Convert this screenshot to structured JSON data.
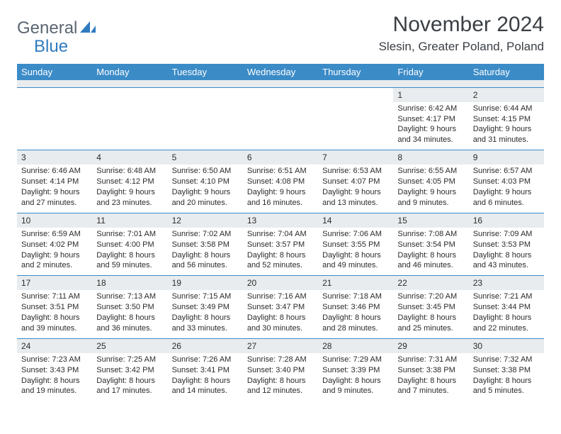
{
  "logo": {
    "textGray": "General",
    "textBlue": "Blue"
  },
  "title": "November 2024",
  "subtitle": "Slesin, Greater Poland, Poland",
  "colors": {
    "headerBg": "#3b8bc7",
    "headerText": "#ffffff",
    "dayNumBg": "#e9ecee",
    "border": "#3b8bc7",
    "bodyText": "#2b2b2b",
    "logoGray": "#5b6670",
    "logoBlue": "#2f7bbf",
    "pageBg": "#ffffff"
  },
  "typography": {
    "titleSize": 30,
    "subtitleSize": 17,
    "headerSize": 13,
    "cellSize": 11,
    "dayNumSize": 12
  },
  "dayHeaders": [
    "Sunday",
    "Monday",
    "Tuesday",
    "Wednesday",
    "Thursday",
    "Friday",
    "Saturday"
  ],
  "weeks": [
    [
      {
        "num": "",
        "sunrise": "",
        "sunset": "",
        "daylight1": "",
        "daylight2": ""
      },
      {
        "num": "",
        "sunrise": "",
        "sunset": "",
        "daylight1": "",
        "daylight2": ""
      },
      {
        "num": "",
        "sunrise": "",
        "sunset": "",
        "daylight1": "",
        "daylight2": ""
      },
      {
        "num": "",
        "sunrise": "",
        "sunset": "",
        "daylight1": "",
        "daylight2": ""
      },
      {
        "num": "",
        "sunrise": "",
        "sunset": "",
        "daylight1": "",
        "daylight2": ""
      },
      {
        "num": "1",
        "sunrise": "Sunrise: 6:42 AM",
        "sunset": "Sunset: 4:17 PM",
        "daylight1": "Daylight: 9 hours",
        "daylight2": "and 34 minutes."
      },
      {
        "num": "2",
        "sunrise": "Sunrise: 6:44 AM",
        "sunset": "Sunset: 4:15 PM",
        "daylight1": "Daylight: 9 hours",
        "daylight2": "and 31 minutes."
      }
    ],
    [
      {
        "num": "3",
        "sunrise": "Sunrise: 6:46 AM",
        "sunset": "Sunset: 4:14 PM",
        "daylight1": "Daylight: 9 hours",
        "daylight2": "and 27 minutes."
      },
      {
        "num": "4",
        "sunrise": "Sunrise: 6:48 AM",
        "sunset": "Sunset: 4:12 PM",
        "daylight1": "Daylight: 9 hours",
        "daylight2": "and 23 minutes."
      },
      {
        "num": "5",
        "sunrise": "Sunrise: 6:50 AM",
        "sunset": "Sunset: 4:10 PM",
        "daylight1": "Daylight: 9 hours",
        "daylight2": "and 20 minutes."
      },
      {
        "num": "6",
        "sunrise": "Sunrise: 6:51 AM",
        "sunset": "Sunset: 4:08 PM",
        "daylight1": "Daylight: 9 hours",
        "daylight2": "and 16 minutes."
      },
      {
        "num": "7",
        "sunrise": "Sunrise: 6:53 AM",
        "sunset": "Sunset: 4:07 PM",
        "daylight1": "Daylight: 9 hours",
        "daylight2": "and 13 minutes."
      },
      {
        "num": "8",
        "sunrise": "Sunrise: 6:55 AM",
        "sunset": "Sunset: 4:05 PM",
        "daylight1": "Daylight: 9 hours",
        "daylight2": "and 9 minutes."
      },
      {
        "num": "9",
        "sunrise": "Sunrise: 6:57 AM",
        "sunset": "Sunset: 4:03 PM",
        "daylight1": "Daylight: 9 hours",
        "daylight2": "and 6 minutes."
      }
    ],
    [
      {
        "num": "10",
        "sunrise": "Sunrise: 6:59 AM",
        "sunset": "Sunset: 4:02 PM",
        "daylight1": "Daylight: 9 hours",
        "daylight2": "and 2 minutes."
      },
      {
        "num": "11",
        "sunrise": "Sunrise: 7:01 AM",
        "sunset": "Sunset: 4:00 PM",
        "daylight1": "Daylight: 8 hours",
        "daylight2": "and 59 minutes."
      },
      {
        "num": "12",
        "sunrise": "Sunrise: 7:02 AM",
        "sunset": "Sunset: 3:58 PM",
        "daylight1": "Daylight: 8 hours",
        "daylight2": "and 56 minutes."
      },
      {
        "num": "13",
        "sunrise": "Sunrise: 7:04 AM",
        "sunset": "Sunset: 3:57 PM",
        "daylight1": "Daylight: 8 hours",
        "daylight2": "and 52 minutes."
      },
      {
        "num": "14",
        "sunrise": "Sunrise: 7:06 AM",
        "sunset": "Sunset: 3:55 PM",
        "daylight1": "Daylight: 8 hours",
        "daylight2": "and 49 minutes."
      },
      {
        "num": "15",
        "sunrise": "Sunrise: 7:08 AM",
        "sunset": "Sunset: 3:54 PM",
        "daylight1": "Daylight: 8 hours",
        "daylight2": "and 46 minutes."
      },
      {
        "num": "16",
        "sunrise": "Sunrise: 7:09 AM",
        "sunset": "Sunset: 3:53 PM",
        "daylight1": "Daylight: 8 hours",
        "daylight2": "and 43 minutes."
      }
    ],
    [
      {
        "num": "17",
        "sunrise": "Sunrise: 7:11 AM",
        "sunset": "Sunset: 3:51 PM",
        "daylight1": "Daylight: 8 hours",
        "daylight2": "and 39 minutes."
      },
      {
        "num": "18",
        "sunrise": "Sunrise: 7:13 AM",
        "sunset": "Sunset: 3:50 PM",
        "daylight1": "Daylight: 8 hours",
        "daylight2": "and 36 minutes."
      },
      {
        "num": "19",
        "sunrise": "Sunrise: 7:15 AM",
        "sunset": "Sunset: 3:49 PM",
        "daylight1": "Daylight: 8 hours",
        "daylight2": "and 33 minutes."
      },
      {
        "num": "20",
        "sunrise": "Sunrise: 7:16 AM",
        "sunset": "Sunset: 3:47 PM",
        "daylight1": "Daylight: 8 hours",
        "daylight2": "and 30 minutes."
      },
      {
        "num": "21",
        "sunrise": "Sunrise: 7:18 AM",
        "sunset": "Sunset: 3:46 PM",
        "daylight1": "Daylight: 8 hours",
        "daylight2": "and 28 minutes."
      },
      {
        "num": "22",
        "sunrise": "Sunrise: 7:20 AM",
        "sunset": "Sunset: 3:45 PM",
        "daylight1": "Daylight: 8 hours",
        "daylight2": "and 25 minutes."
      },
      {
        "num": "23",
        "sunrise": "Sunrise: 7:21 AM",
        "sunset": "Sunset: 3:44 PM",
        "daylight1": "Daylight: 8 hours",
        "daylight2": "and 22 minutes."
      }
    ],
    [
      {
        "num": "24",
        "sunrise": "Sunrise: 7:23 AM",
        "sunset": "Sunset: 3:43 PM",
        "daylight1": "Daylight: 8 hours",
        "daylight2": "and 19 minutes."
      },
      {
        "num": "25",
        "sunrise": "Sunrise: 7:25 AM",
        "sunset": "Sunset: 3:42 PM",
        "daylight1": "Daylight: 8 hours",
        "daylight2": "and 17 minutes."
      },
      {
        "num": "26",
        "sunrise": "Sunrise: 7:26 AM",
        "sunset": "Sunset: 3:41 PM",
        "daylight1": "Daylight: 8 hours",
        "daylight2": "and 14 minutes."
      },
      {
        "num": "27",
        "sunrise": "Sunrise: 7:28 AM",
        "sunset": "Sunset: 3:40 PM",
        "daylight1": "Daylight: 8 hours",
        "daylight2": "and 12 minutes."
      },
      {
        "num": "28",
        "sunrise": "Sunrise: 7:29 AM",
        "sunset": "Sunset: 3:39 PM",
        "daylight1": "Daylight: 8 hours",
        "daylight2": "and 9 minutes."
      },
      {
        "num": "29",
        "sunrise": "Sunrise: 7:31 AM",
        "sunset": "Sunset: 3:38 PM",
        "daylight1": "Daylight: 8 hours",
        "daylight2": "and 7 minutes."
      },
      {
        "num": "30",
        "sunrise": "Sunrise: 7:32 AM",
        "sunset": "Sunset: 3:38 PM",
        "daylight1": "Daylight: 8 hours",
        "daylight2": "and 5 minutes."
      }
    ]
  ]
}
